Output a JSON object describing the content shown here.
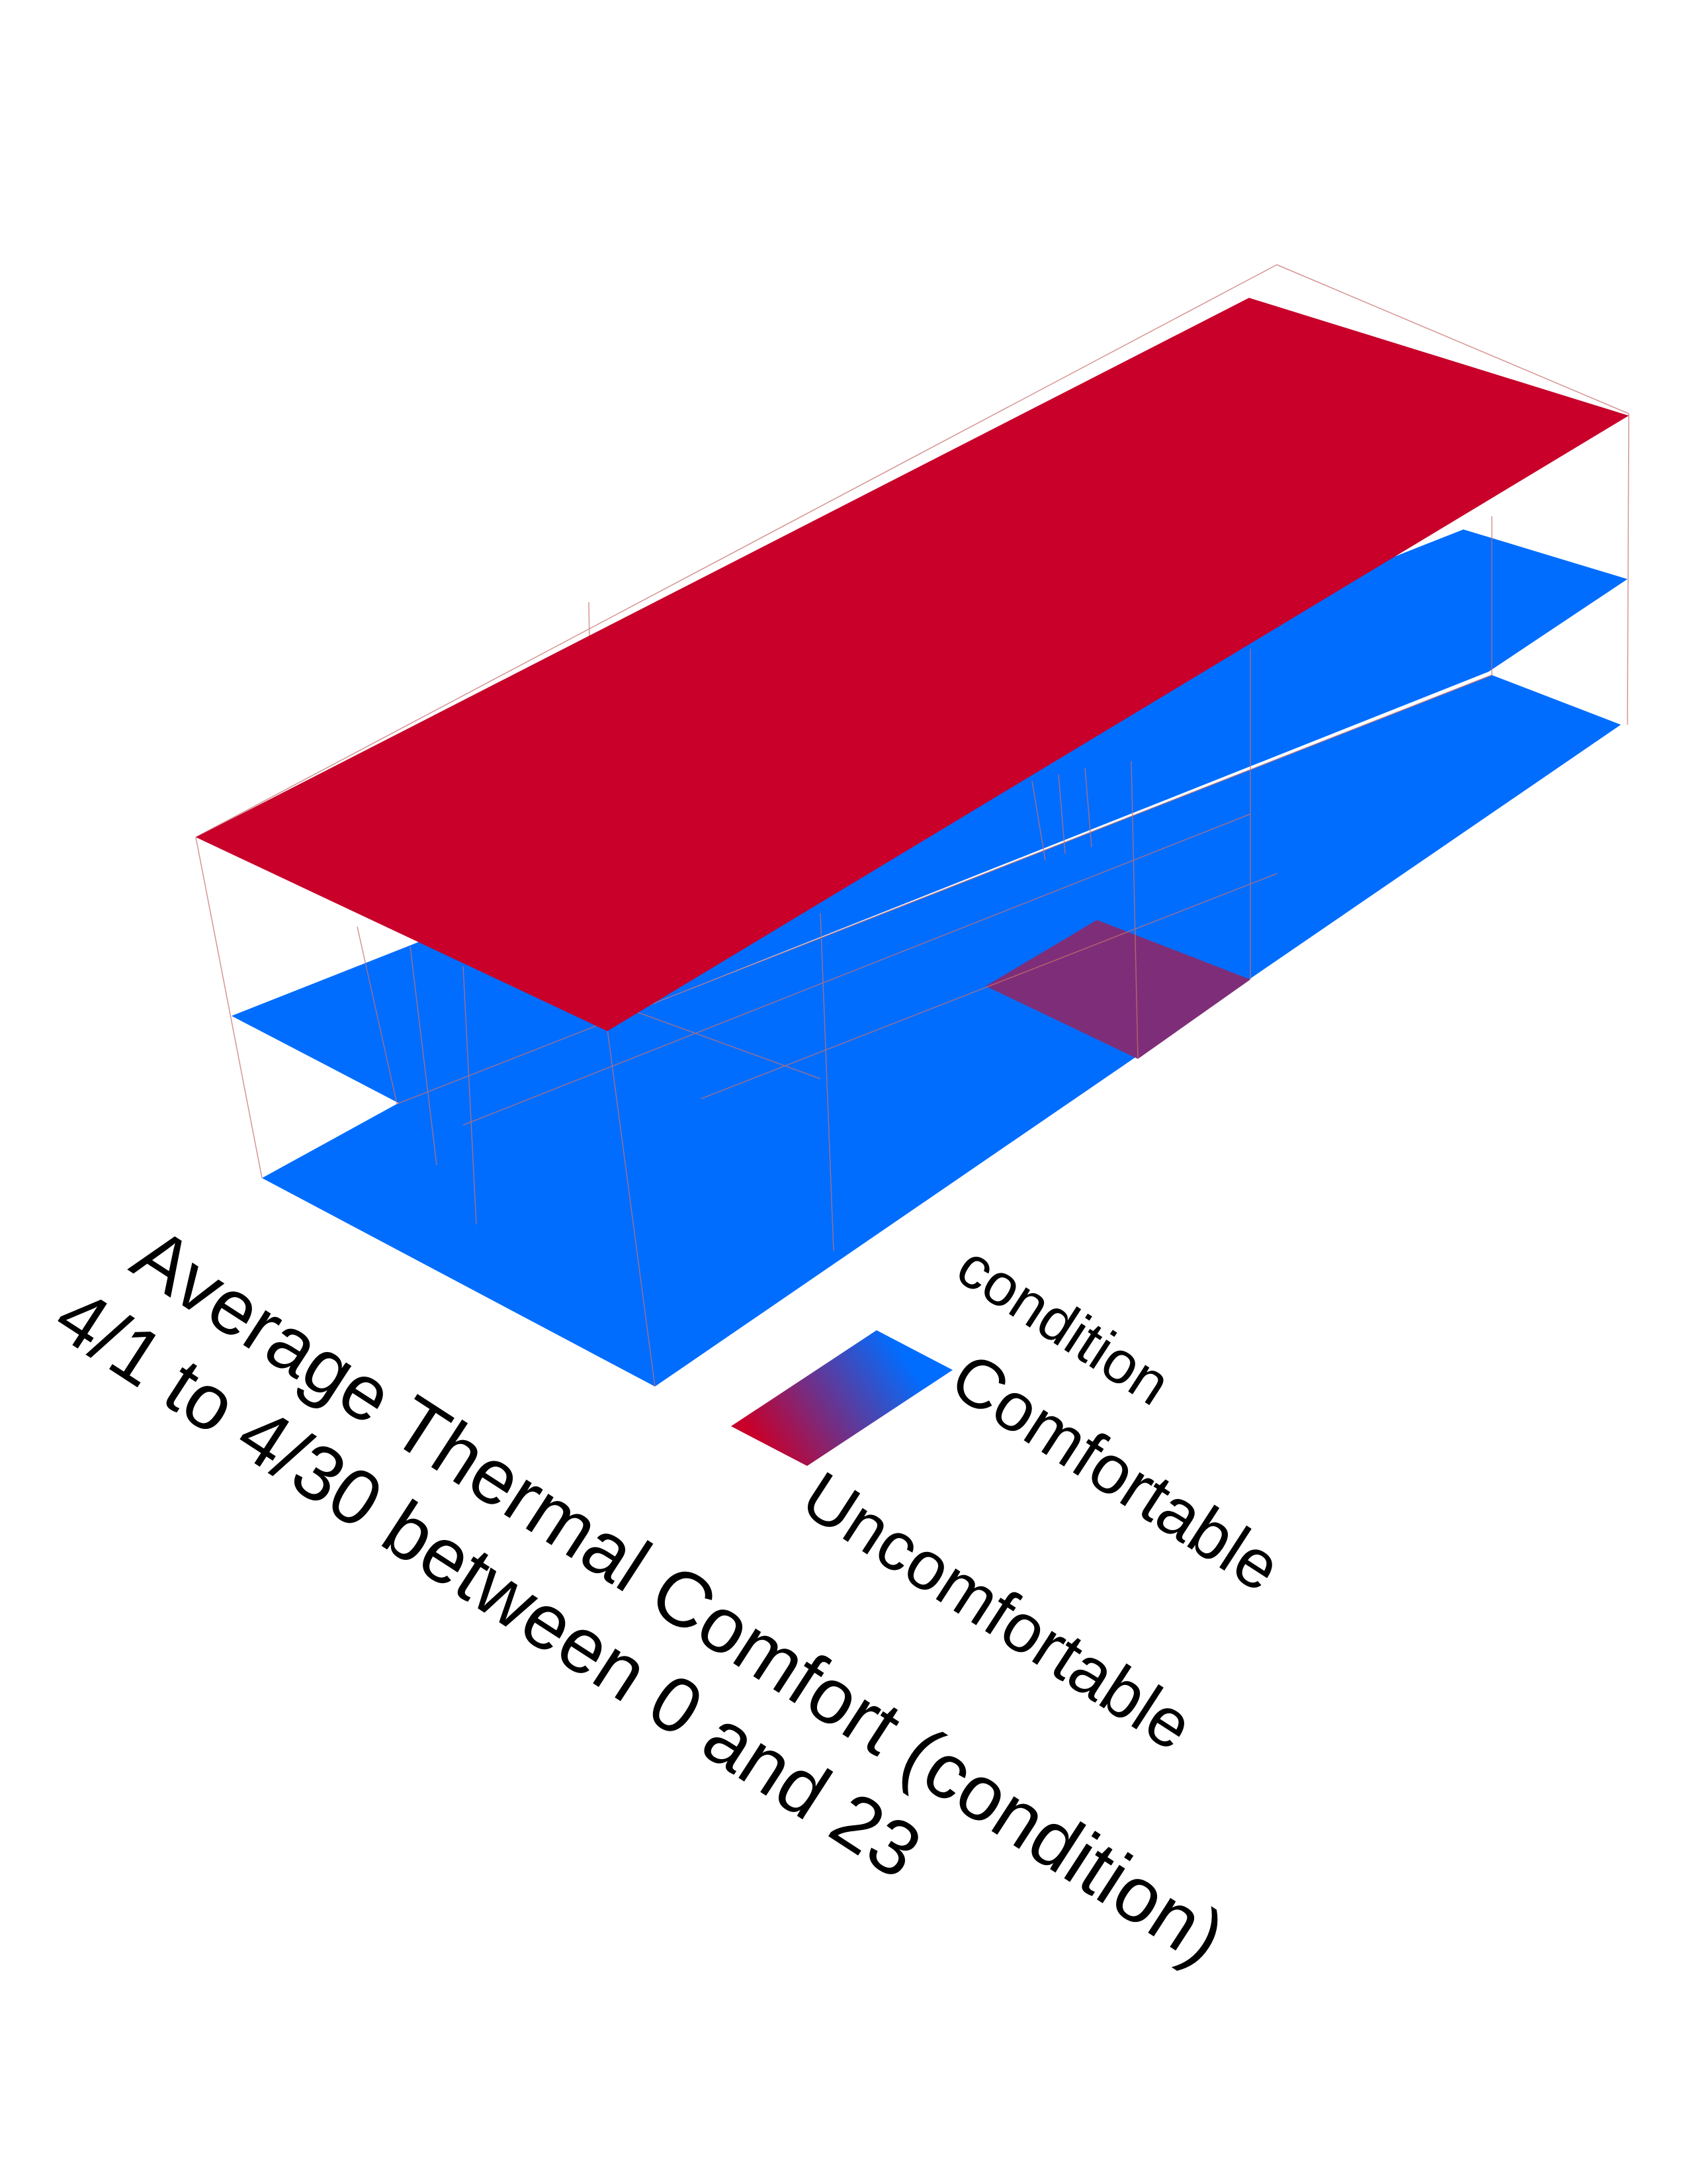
{
  "title_line1": "Average Thermal Comfort (condition)",
  "title_line2": "4/1 to 4/30 between 0 and 23",
  "legend": {
    "heading": "condition",
    "high_label": "Comfortable",
    "low_label": "Uncomfortable"
  },
  "colors": {
    "comfortable": "#006dff",
    "uncomfortable": "#c8002a",
    "intermediate": "#7e2e78",
    "edge": "#c87070"
  },
  "floors": [
    {
      "level": "roof",
      "condition": "Uncomfortable"
    },
    {
      "level": "middle",
      "condition": "Comfortable"
    },
    {
      "level": "ground",
      "condition": "Comfortable"
    },
    {
      "level": "middle-zone",
      "condition": "between"
    }
  ]
}
